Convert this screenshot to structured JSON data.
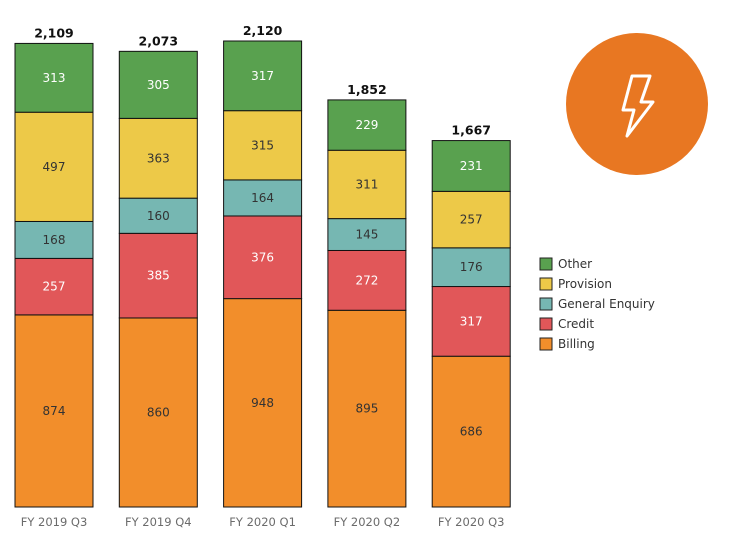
{
  "chart_data": {
    "type": "bar",
    "stacked": true,
    "categories": [
      "FY 2019 Q3",
      "FY 2019 Q4",
      "FY 2020 Q1",
      "FY 2020 Q2",
      "FY 2020 Q3"
    ],
    "series": [
      {
        "name": "Billing",
        "color": "#F28E2B",
        "label_color": "#333333",
        "values": [
          874,
          860,
          948,
          895,
          686
        ]
      },
      {
        "name": "Credit",
        "color": "#E15759",
        "label_color": "#ffffff",
        "values": [
          257,
          385,
          376,
          272,
          317
        ]
      },
      {
        "name": "General Enquiry",
        "color": "#76B7B2",
        "label_color": "#333333",
        "values": [
          168,
          160,
          164,
          145,
          176
        ]
      },
      {
        "name": "Provision",
        "color": "#EDC948",
        "label_color": "#333333",
        "values": [
          497,
          363,
          315,
          311,
          257
        ]
      },
      {
        "name": "Other",
        "color": "#59A14F",
        "label_color": "#ffffff",
        "values": [
          313,
          305,
          317,
          229,
          231
        ]
      }
    ],
    "totals": [
      "2,109",
      "2,073",
      "2,120",
      "1,852",
      "1,667"
    ],
    "legend_order": [
      "Other",
      "Provision",
      "General Enquiry",
      "Credit",
      "Billing"
    ],
    "legend_position": "right",
    "grid": false,
    "ylim": [
      0,
      2120
    ]
  },
  "badge": {
    "icon": "lightning-bolt-icon",
    "color": "#E87722"
  }
}
